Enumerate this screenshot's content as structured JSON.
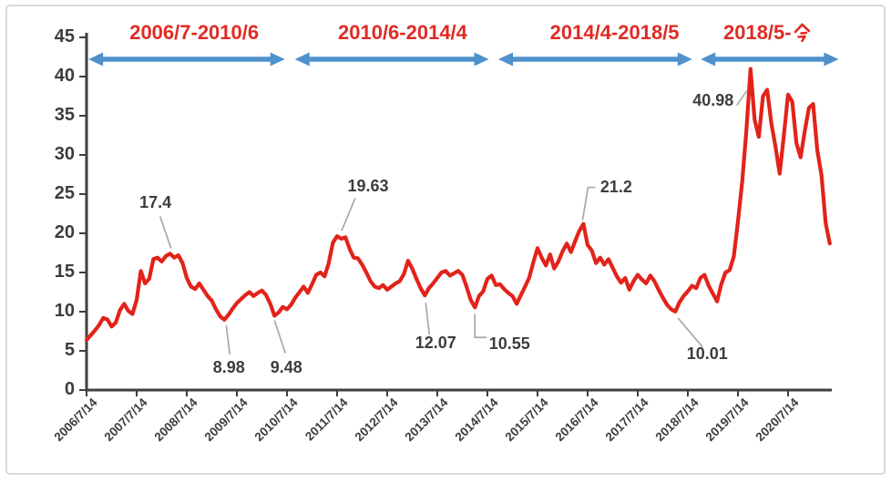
{
  "chart_data": {
    "type": "line",
    "title": "",
    "grid": false,
    "legend": "none",
    "colors": {
      "series_line": "#e2231a",
      "period_label": "#e02b24",
      "arrow": "#4e91cd",
      "axis": "#3f3f3f",
      "tick_label": "#3d3d3d",
      "annotation_text": "#3d3d3d",
      "leader_line": "#a8a8a8",
      "frame_border": "#d8d8d8"
    },
    "y_axis": {
      "range": [
        0,
        45
      ],
      "ticks": [
        0,
        5,
        10,
        15,
        20,
        25,
        30,
        35,
        40,
        45
      ]
    },
    "x_axis": {
      "tick_labels": [
        "2006/7/14",
        "2007/7/14",
        "2008/7/14",
        "2009/7/14",
        "2010/7/14",
        "2011/7/14",
        "2012/7/14",
        "2013/7/14",
        "2014/7/14",
        "2015/7/14",
        "2016/7/14",
        "2017/7/14",
        "2018/7/14",
        "2019/7/14",
        "2020/7/14"
      ],
      "tick_interval": "1 year"
    },
    "series": [
      {
        "start_year_fraction": 2006.5417,
        "step": "monthly",
        "values": [
          6.4,
          7.0,
          7.6,
          8.3,
          9.2,
          9.0,
          8.1,
          8.6,
          10.2,
          11.0,
          10.1,
          9.7,
          11.5,
          15.2,
          13.6,
          14.2,
          16.7,
          16.9,
          16.4,
          17.1,
          17.4,
          16.9,
          17.2,
          16.2,
          14.3,
          13.2,
          12.9,
          13.6,
          12.8,
          12.0,
          11.4,
          10.3,
          9.4,
          8.98,
          9.6,
          10.4,
          11.1,
          11.6,
          12.1,
          12.5,
          12.0,
          12.4,
          12.7,
          12.1,
          11.0,
          9.48,
          9.9,
          10.6,
          10.3,
          10.9,
          11.8,
          12.5,
          13.2,
          12.4,
          13.5,
          14.7,
          15.0,
          14.5,
          16.2,
          18.8,
          19.63,
          19.3,
          19.5,
          18.0,
          16.9,
          16.8,
          16.0,
          15.0,
          13.9,
          13.2,
          13.0,
          13.4,
          12.8,
          13.2,
          13.6,
          13.9,
          14.8,
          16.5,
          15.5,
          14.2,
          13.0,
          12.07,
          13.0,
          13.6,
          14.3,
          15.0,
          15.2,
          14.6,
          14.9,
          15.2,
          14.7,
          13.2,
          11.5,
          10.55,
          12.0,
          12.6,
          14.2,
          14.6,
          13.4,
          13.5,
          12.9,
          12.4,
          12.0,
          11.0,
          12.1,
          13.2,
          14.3,
          16.3,
          18.1,
          16.9,
          15.9,
          17.3,
          15.5,
          16.4,
          17.7,
          18.7,
          17.6,
          19.0,
          20.3,
          21.2,
          18.5,
          17.8,
          16.2,
          16.9,
          16.0,
          16.7,
          15.6,
          14.5,
          13.7,
          14.3,
          12.8,
          13.9,
          14.7,
          14.1,
          13.6,
          14.6,
          13.9,
          12.8,
          11.8,
          10.9,
          10.3,
          10.01,
          11.2,
          12.0,
          12.6,
          13.3,
          13.0,
          14.3,
          14.7,
          13.3,
          12.3,
          11.3,
          13.5,
          15.0,
          15.3,
          17.0,
          21.5,
          26.5,
          33.0,
          40.98,
          34.5,
          32.3,
          37.5,
          38.3,
          34.0,
          31.0,
          27.6,
          32.5,
          37.7,
          36.8,
          31.5,
          29.7,
          33.0,
          36.0,
          36.5,
          30.6,
          27.4,
          21.3,
          18.7
        ]
      }
    ],
    "annotations": [
      {
        "text": "17.4",
        "t": 20,
        "label_offset": [
          -16,
          -55
        ],
        "leader": [
          [
            -11,
            -41
          ],
          [
            1,
            -6
          ]
        ]
      },
      {
        "text": "8.98",
        "t": 33,
        "label_offset": [
          5,
          53
        ],
        "leader": [
          [
            2,
            6
          ],
          [
            6,
            38
          ]
        ]
      },
      {
        "text": "9.48",
        "t": 45,
        "label_offset": [
          13,
          58
        ],
        "leader": [
          [
            0,
            5
          ],
          [
            12,
            41
          ]
        ]
      },
      {
        "text": "19.63",
        "t": 60,
        "label_offset": [
          34,
          -54
        ],
        "leader": [
          [
            20,
            -42
          ],
          [
            5,
            -6
          ]
        ]
      },
      {
        "text": "12.07",
        "t": 81,
        "label_offset": [
          12,
          53
        ],
        "leader": [
          [
            1,
            8
          ],
          [
            5,
            43
          ]
        ]
      },
      {
        "text": "10.55",
        "t": 93,
        "label_offset": [
          38,
          41
        ],
        "leader": [
          [
            0,
            7
          ],
          [
            0,
            33
          ],
          [
            13,
            33
          ]
        ]
      },
      {
        "text": "21.2",
        "t": 119,
        "label_offset": [
          36,
          -40
        ],
        "leader": [
          [
            13,
            -40
          ],
          [
            5,
            -40
          ],
          [
            -1,
            -4
          ]
        ]
      },
      {
        "text": "10.01",
        "t": 141,
        "label_offset": [
          35,
          47
        ],
        "leader": [
          [
            3,
            7
          ],
          [
            30,
            39
          ]
        ]
      },
      {
        "text": "40.98",
        "t": 159,
        "label_offset": [
          -41,
          35
        ],
        "leader": [
          [
            -15,
            40
          ],
          [
            -4,
            24
          ]
        ]
      }
    ],
    "periods": [
      {
        "label": "2006/7-2010/6",
        "arrow_years": [
          2006.58,
          2010.5
        ],
        "label_center_year": 2008.69
      },
      {
        "label": "2010/6-2014/4",
        "arrow_years": [
          2010.7,
          2014.57
        ],
        "label_center_year": 2012.85
      },
      {
        "label": "2014/4-2018/5",
        "arrow_years": [
          2014.76,
          2018.63
        ],
        "label_center_year": 2017.08
      },
      {
        "label": "2018/5-今",
        "arrow_years": [
          2018.8,
          2021.55
        ],
        "label_center_year": 2020.12
      }
    ]
  }
}
